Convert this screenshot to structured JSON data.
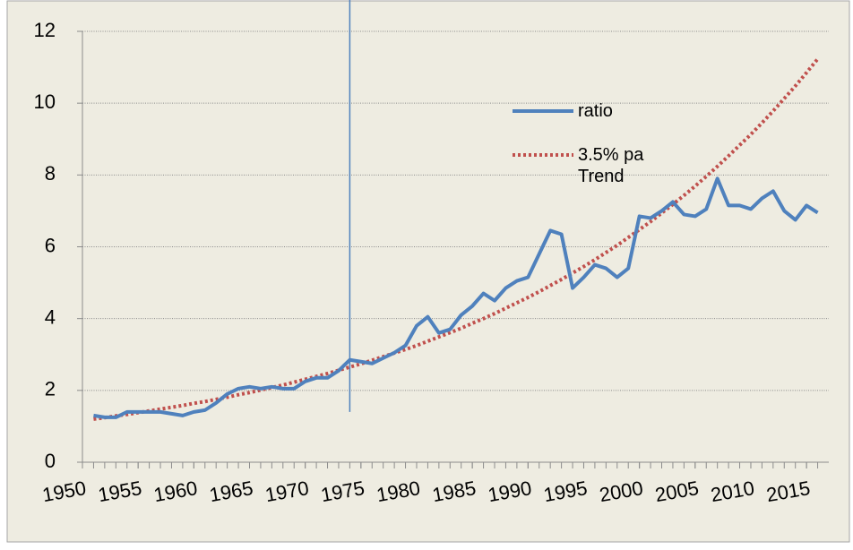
{
  "chart_data": {
    "type": "line",
    "x": [
      1951,
      1952,
      1953,
      1954,
      1955,
      1956,
      1957,
      1958,
      1959,
      1960,
      1961,
      1962,
      1963,
      1964,
      1965,
      1966,
      1967,
      1968,
      1969,
      1970,
      1971,
      1972,
      1973,
      1974,
      1975,
      1976,
      1977,
      1978,
      1979,
      1980,
      1981,
      1982,
      1983,
      1984,
      1985,
      1986,
      1987,
      1988,
      1989,
      1990,
      1991,
      1992,
      1993,
      1994,
      1995,
      1996,
      1997,
      1998,
      1999,
      2000,
      2001,
      2002,
      2003,
      2004,
      2005,
      2006,
      2007,
      2008,
      2009,
      2010,
      2011,
      2012,
      2013,
      2014,
      2015,
      2016
    ],
    "series": [
      {
        "name": "ratio",
        "color": "#4f81bd",
        "style": "solid",
        "values": [
          1.3,
          1.25,
          1.25,
          1.4,
          1.4,
          1.4,
          1.4,
          1.35,
          1.3,
          1.4,
          1.45,
          1.65,
          1.9,
          2.05,
          2.1,
          2.05,
          2.1,
          2.05,
          2.05,
          2.25,
          2.35,
          2.35,
          2.55,
          2.85,
          2.8,
          2.75,
          2.9,
          3.05,
          3.25,
          3.8,
          4.05,
          3.6,
          3.7,
          4.1,
          4.35,
          4.7,
          4.5,
          4.85,
          5.05,
          5.15,
          5.8,
          6.45,
          6.35,
          4.85,
          5.15,
          5.5,
          5.4,
          5.15,
          5.4,
          6.85,
          6.8,
          7.0,
          7.25,
          6.9,
          6.85,
          7.05,
          7.9,
          7.15,
          7.15,
          7.05,
          7.35,
          7.55,
          7.0,
          6.75,
          7.15,
          6.95
        ]
      },
      {
        "name": "3.5% pa Trend",
        "color": "#c0504d",
        "style": "dotted",
        "values": [
          1.2,
          1.24,
          1.29,
          1.33,
          1.38,
          1.43,
          1.48,
          1.53,
          1.58,
          1.64,
          1.69,
          1.75,
          1.81,
          1.88,
          1.94,
          2.01,
          2.08,
          2.15,
          2.23,
          2.31,
          2.39,
          2.47,
          2.56,
          2.65,
          2.74,
          2.84,
          2.94,
          3.04,
          3.14,
          3.25,
          3.37,
          3.49,
          3.61,
          3.73,
          3.87,
          4.0,
          4.14,
          4.29,
          4.44,
          4.59,
          4.75,
          4.92,
          5.09,
          5.27,
          5.45,
          5.64,
          5.84,
          6.04,
          6.26,
          6.48,
          6.7,
          6.94,
          7.18,
          7.43,
          7.69,
          7.96,
          8.24,
          8.53,
          8.83,
          9.13,
          9.45,
          9.78,
          10.13,
          10.48,
          10.85,
          11.23
        ]
      }
    ],
    "xlim": [
      1950,
      2017
    ],
    "xticks": [
      1950,
      1955,
      1960,
      1965,
      1970,
      1975,
      1980,
      1985,
      1990,
      1995,
      2000,
      2005,
      2010,
      2015
    ],
    "ylim": [
      0,
      12
    ],
    "yticks": [
      0,
      2,
      4,
      6,
      8,
      10,
      12
    ],
    "grid": true,
    "vline": {
      "x": 1974,
      "ymin": 1.4,
      "ymax": 12.9,
      "color": "#4f81bd"
    }
  }
}
